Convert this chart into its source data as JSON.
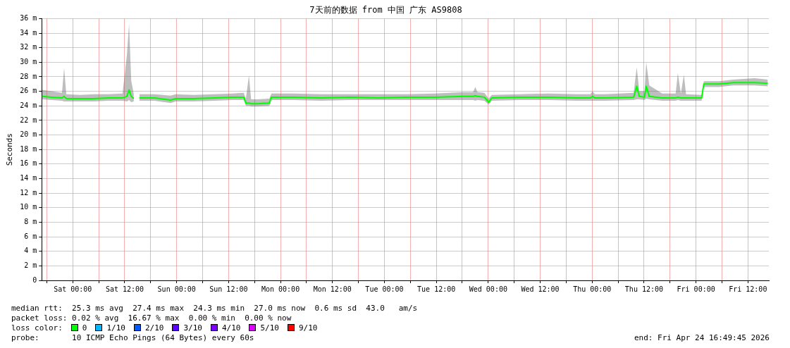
{
  "chart_data": {
    "type": "line",
    "title": "7天前的数据 from 中国 广东 AS9808",
    "ylabel": "Seconds",
    "x": [
      "2026-04-17T16:54",
      "2026-04-17T19:06",
      "2026-04-17T21:30",
      "2026-04-17T22:00",
      "2026-04-17T22:30",
      "2026-04-18T01:36",
      "2026-04-18T04:54",
      "2026-04-18T08:12",
      "2026-04-18T11:30",
      "2026-04-18T12:30",
      "2026-04-18T13:00",
      "2026-04-18T13:30",
      "2026-04-18T14:06",
      "2026-04-18T14:48",
      "2026-04-18T15:24",
      "2026-04-18T18:54",
      "2026-04-18T22:36",
      "2026-04-18T23:48",
      "2026-04-19T03:54",
      "2026-04-19T08:48",
      "2026-04-19T12:54",
      "2026-04-19T15:30",
      "2026-04-19T16:00",
      "2026-04-19T16:42",
      "2026-04-19T17:12",
      "2026-04-19T18:42",
      "2026-04-19T21:24",
      "2026-04-19T21:54",
      "2026-04-20T02:54",
      "2026-04-20T09:24",
      "2026-04-20T16:00",
      "2026-04-20T22:30",
      "2026-04-21T05:06",
      "2026-04-21T11:42",
      "2026-04-21T18:12",
      "2026-04-21T20:30",
      "2026-04-21T21:00",
      "2026-04-21T21:30",
      "2026-04-21T23:06",
      "2026-04-22T00:06",
      "2026-04-22T00:48",
      "2026-04-22T07:18",
      "2026-04-22T13:54",
      "2026-04-22T20:30",
      "2026-04-22T23:36",
      "2026-04-23T00:06",
      "2026-04-23T00:36",
      "2026-04-23T03:00",
      "2026-04-23T09:36",
      "2026-04-23T10:18",
      "2026-04-23T10:54",
      "2026-04-23T12:06",
      "2026-04-23T12:30",
      "2026-04-23T13:12",
      "2026-04-23T16:12",
      "2026-04-23T19:18",
      "2026-04-23T19:48",
      "2026-04-23T20:30",
      "2026-04-23T21:12",
      "2026-04-23T21:42",
      "2026-04-24T01:18",
      "2026-04-24T01:48",
      "2026-04-24T05:18",
      "2026-04-24T08:36",
      "2026-04-24T13:30",
      "2026-04-24T16:36"
    ],
    "series": [
      {
        "color": "#00ff00",
        "values": [
          25.3,
          25.2,
          25.1,
          25.3,
          25.0,
          25.0,
          25.0,
          25.1,
          25.1,
          25.3,
          26.2,
          25.3,
          25.0,
          null,
          25.1,
          25.1,
          24.8,
          25.0,
          25.0,
          25.1,
          25.2,
          25.2,
          24.4,
          24.4,
          24.3,
          24.3,
          24.4,
          25.2,
          25.2,
          25.1,
          25.2,
          25.1,
          25.2,
          25.2,
          25.3,
          25.3,
          25.4,
          25.3,
          25.2,
          24.5,
          25.1,
          25.2,
          25.2,
          25.1,
          25.1,
          25.3,
          25.1,
          25.1,
          25.2,
          26.7,
          25.3,
          25.2,
          26.7,
          25.3,
          25.1,
          25.1,
          25.2,
          25.1,
          25.1,
          25.1,
          25.1,
          27.0,
          27.0,
          27.2,
          27.2,
          27.1
        ],
        "lower": [
          24.9,
          24.8,
          24.7,
          24.6,
          24.6,
          24.6,
          24.6,
          24.7,
          24.7,
          24.6,
          24.8,
          24.5,
          24.6,
          null,
          24.7,
          24.7,
          24.4,
          24.6,
          24.6,
          24.7,
          24.8,
          24.8,
          24.0,
          24.0,
          23.9,
          23.9,
          24.0,
          24.8,
          24.8,
          24.7,
          24.8,
          24.8,
          24.8,
          24.8,
          24.8,
          24.8,
          24.7,
          24.8,
          24.7,
          24.2,
          24.7,
          24.8,
          24.8,
          24.7,
          24.7,
          24.7,
          24.7,
          24.7,
          24.8,
          24.9,
          24.9,
          24.8,
          25.0,
          24.9,
          24.7,
          24.7,
          24.8,
          24.7,
          24.7,
          24.7,
          24.7,
          26.6,
          26.6,
          26.8,
          26.8,
          26.7
        ],
        "upper": [
          26.2,
          26.0,
          25.8,
          29.2,
          25.6,
          25.5,
          25.6,
          25.6,
          25.7,
          31.0,
          35.3,
          27.5,
          25.6,
          null,
          25.6,
          25.6,
          25.4,
          25.6,
          25.5,
          25.6,
          25.7,
          25.8,
          25.0,
          28.2,
          24.9,
          24.9,
          25.0,
          25.7,
          25.7,
          25.6,
          25.6,
          25.6,
          25.6,
          25.7,
          25.9,
          25.9,
          26.6,
          25.9,
          25.8,
          25.0,
          25.5,
          25.6,
          25.7,
          25.6,
          25.6,
          26.0,
          25.6,
          25.6,
          25.8,
          29.3,
          26.0,
          26.0,
          30.0,
          26.8,
          25.7,
          25.7,
          28.5,
          25.7,
          28.3,
          25.6,
          25.5,
          27.4,
          27.4,
          27.6,
          27.8,
          27.6
        ]
      }
    ],
    "xlim": [
      "2026-04-17T16:50",
      "2026-04-24T16:50"
    ],
    "xticks": [
      {
        "value": "2026-04-17T18:00",
        "label": null
      },
      {
        "value": "2026-04-18T00:00",
        "label": "Sat 00:00"
      },
      {
        "value": "2026-04-18T06:00",
        "label": null
      },
      {
        "value": "2026-04-18T12:00",
        "label": "Sat 12:00"
      },
      {
        "value": "2026-04-18T18:00",
        "label": null
      },
      {
        "value": "2026-04-19T00:00",
        "label": "Sun 00:00"
      },
      {
        "value": "2026-04-19T06:00",
        "label": null
      },
      {
        "value": "2026-04-19T12:00",
        "label": "Sun 12:00"
      },
      {
        "value": "2026-04-19T18:00",
        "label": null
      },
      {
        "value": "2026-04-20T00:00",
        "label": "Mon 00:00"
      },
      {
        "value": "2026-04-20T06:00",
        "label": null
      },
      {
        "value": "2026-04-20T12:00",
        "label": "Mon 12:00"
      },
      {
        "value": "2026-04-20T18:00",
        "label": null
      },
      {
        "value": "2026-04-21T00:00",
        "label": "Tue 00:00"
      },
      {
        "value": "2026-04-21T06:00",
        "label": null
      },
      {
        "value": "2026-04-21T12:00",
        "label": "Tue 12:00"
      },
      {
        "value": "2026-04-21T18:00",
        "label": null
      },
      {
        "value": "2026-04-22T00:00",
        "label": "Wed 00:00"
      },
      {
        "value": "2026-04-22T06:00",
        "label": null
      },
      {
        "value": "2026-04-22T12:00",
        "label": "Wed 12:00"
      },
      {
        "value": "2026-04-22T18:00",
        "label": null
      },
      {
        "value": "2026-04-23T00:00",
        "label": "Thu 00:00"
      },
      {
        "value": "2026-04-23T06:00",
        "label": null
      },
      {
        "value": "2026-04-23T12:00",
        "label": "Thu 12:00"
      },
      {
        "value": "2026-04-23T18:00",
        "label": null
      },
      {
        "value": "2026-04-24T00:00",
        "label": "Fri 00:00"
      },
      {
        "value": "2026-04-24T06:00",
        "label": null
      },
      {
        "value": "2026-04-24T12:00",
        "label": "Fri 12:00"
      }
    ],
    "ylim": [
      0,
      36
    ],
    "yticks": [
      0,
      {
        "value": 2,
        "label": "2 m"
      },
      {
        "value": 4,
        "label": "4 m"
      },
      {
        "value": 6,
        "label": "6 m"
      },
      {
        "value": 8,
        "label": "8 m"
      },
      {
        "value": 10,
        "label": "10 m"
      },
      {
        "value": 12,
        "label": "12 m"
      },
      {
        "value": 14,
        "label": "14 m"
      },
      {
        "value": 16,
        "label": "16 m"
      },
      {
        "value": 18,
        "label": "18 m"
      },
      {
        "value": 20,
        "label": "20 m"
      },
      {
        "value": 22,
        "label": "22 m"
      },
      {
        "value": 24,
        "label": "24 m"
      },
      {
        "value": 26,
        "label": "26 m"
      },
      {
        "value": 28,
        "label": "28 m"
      },
      {
        "value": 30,
        "label": "30 m"
      },
      {
        "value": 32,
        "label": "32 m"
      },
      {
        "value": 34,
        "label": "34 m"
      },
      {
        "value": 36,
        "label": "36 m"
      }
    ],
    "grid": true,
    "legend": false,
    "marker": "none",
    "line_style": "solid",
    "annotations": [
      "median rtt:  25.3 ms avg  27.4 ms max  24.3 ms min  27.0 ms now  0.6 ms sd  43.0   am/s",
      "packet loss: 0.02 % avg  16.67 % max  0.00 % min  0.00 % now",
      "loss color:",
      "0",
      "1/10",
      "2/10",
      "3/10",
      "4/10",
      "5/10",
      "9/10",
      "probe:       10 ICMP Echo Pings (64 Bytes) every 60s",
      "end: Fri Apr 24 16:49:45 2026"
    ]
  }
}
